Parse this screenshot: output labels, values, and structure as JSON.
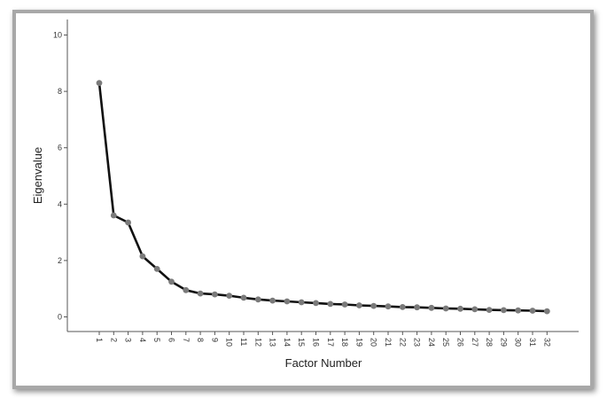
{
  "chart_data": {
    "type": "line",
    "title": "",
    "xlabel": "Factor Number",
    "ylabel": "Eigenvalue",
    "x": [
      1,
      2,
      3,
      4,
      5,
      6,
      7,
      8,
      9,
      10,
      11,
      12,
      13,
      14,
      15,
      16,
      17,
      18,
      19,
      20,
      21,
      22,
      23,
      24,
      25,
      26,
      27,
      28,
      29,
      30,
      31,
      32
    ],
    "values": [
      8.3,
      3.6,
      3.35,
      2.15,
      1.7,
      1.25,
      0.95,
      0.83,
      0.8,
      0.75,
      0.68,
      0.62,
      0.58,
      0.55,
      0.52,
      0.49,
      0.46,
      0.44,
      0.41,
      0.39,
      0.37,
      0.35,
      0.34,
      0.32,
      0.3,
      0.29,
      0.27,
      0.25,
      0.24,
      0.23,
      0.22,
      0.2
    ],
    "ylim": [
      -0.5,
      10.6
    ],
    "yticks": [
      0,
      2,
      4,
      6,
      8,
      10
    ],
    "grid": false,
    "line_color": "#111111",
    "marker_color": "#7a7a7a"
  }
}
